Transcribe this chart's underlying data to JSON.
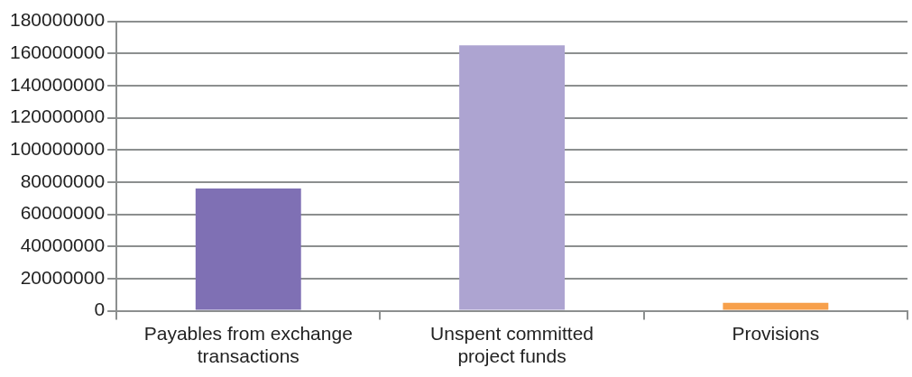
{
  "chart_data": {
    "type": "bar",
    "categories": [
      "Payables from exchange transactions",
      "Unspent committed project funds",
      "Provisions"
    ],
    "values": [
      76000000,
      165000000,
      5000000
    ],
    "colors": [
      "#7f70b4",
      "#ada4d1",
      "#f7a04b"
    ],
    "ylim": [
      0,
      180000000
    ],
    "yticks": [
      0,
      20000000,
      40000000,
      60000000,
      80000000,
      100000000,
      120000000,
      140000000,
      160000000,
      180000000
    ],
    "grid": "y",
    "legend": false
  }
}
